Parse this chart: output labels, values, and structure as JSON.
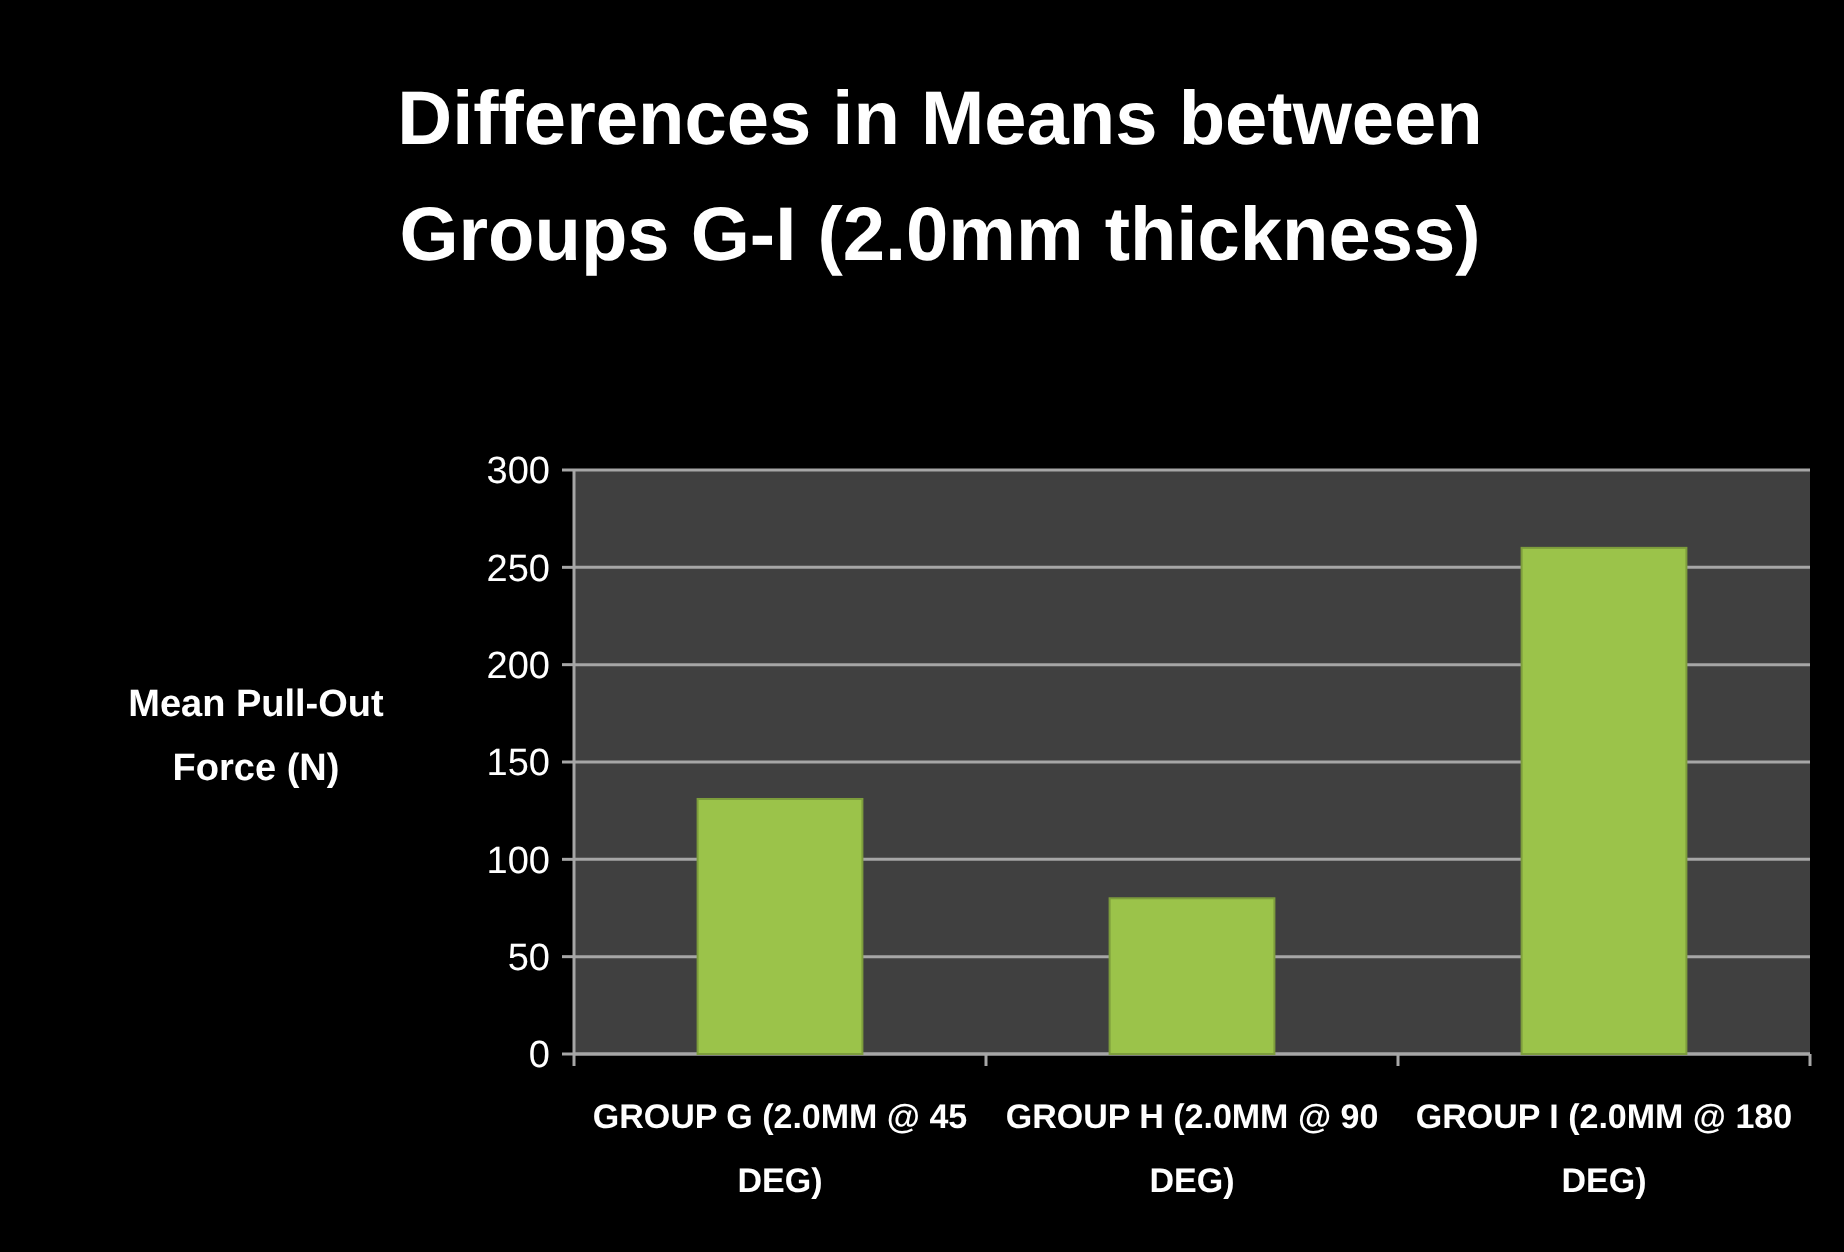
{
  "chart_data": {
    "type": "bar",
    "title": "Differences in Means between Groups G-I (2.0mm thickness)",
    "ylabel": "Mean Pull-Out Force (N)",
    "categories": [
      "GROUP G (2.0MM @ 45 DEG)",
      "GROUP H (2.0MM @ 90 DEG)",
      "GROUP I (2.0MM @ 180 DEG)"
    ],
    "values": [
      131,
      80,
      260
    ],
    "color": "#9bc34a",
    "ylim": [
      0,
      300
    ],
    "yticks": [
      0,
      50,
      100,
      150,
      200,
      250,
      300
    ],
    "grid": "y"
  }
}
